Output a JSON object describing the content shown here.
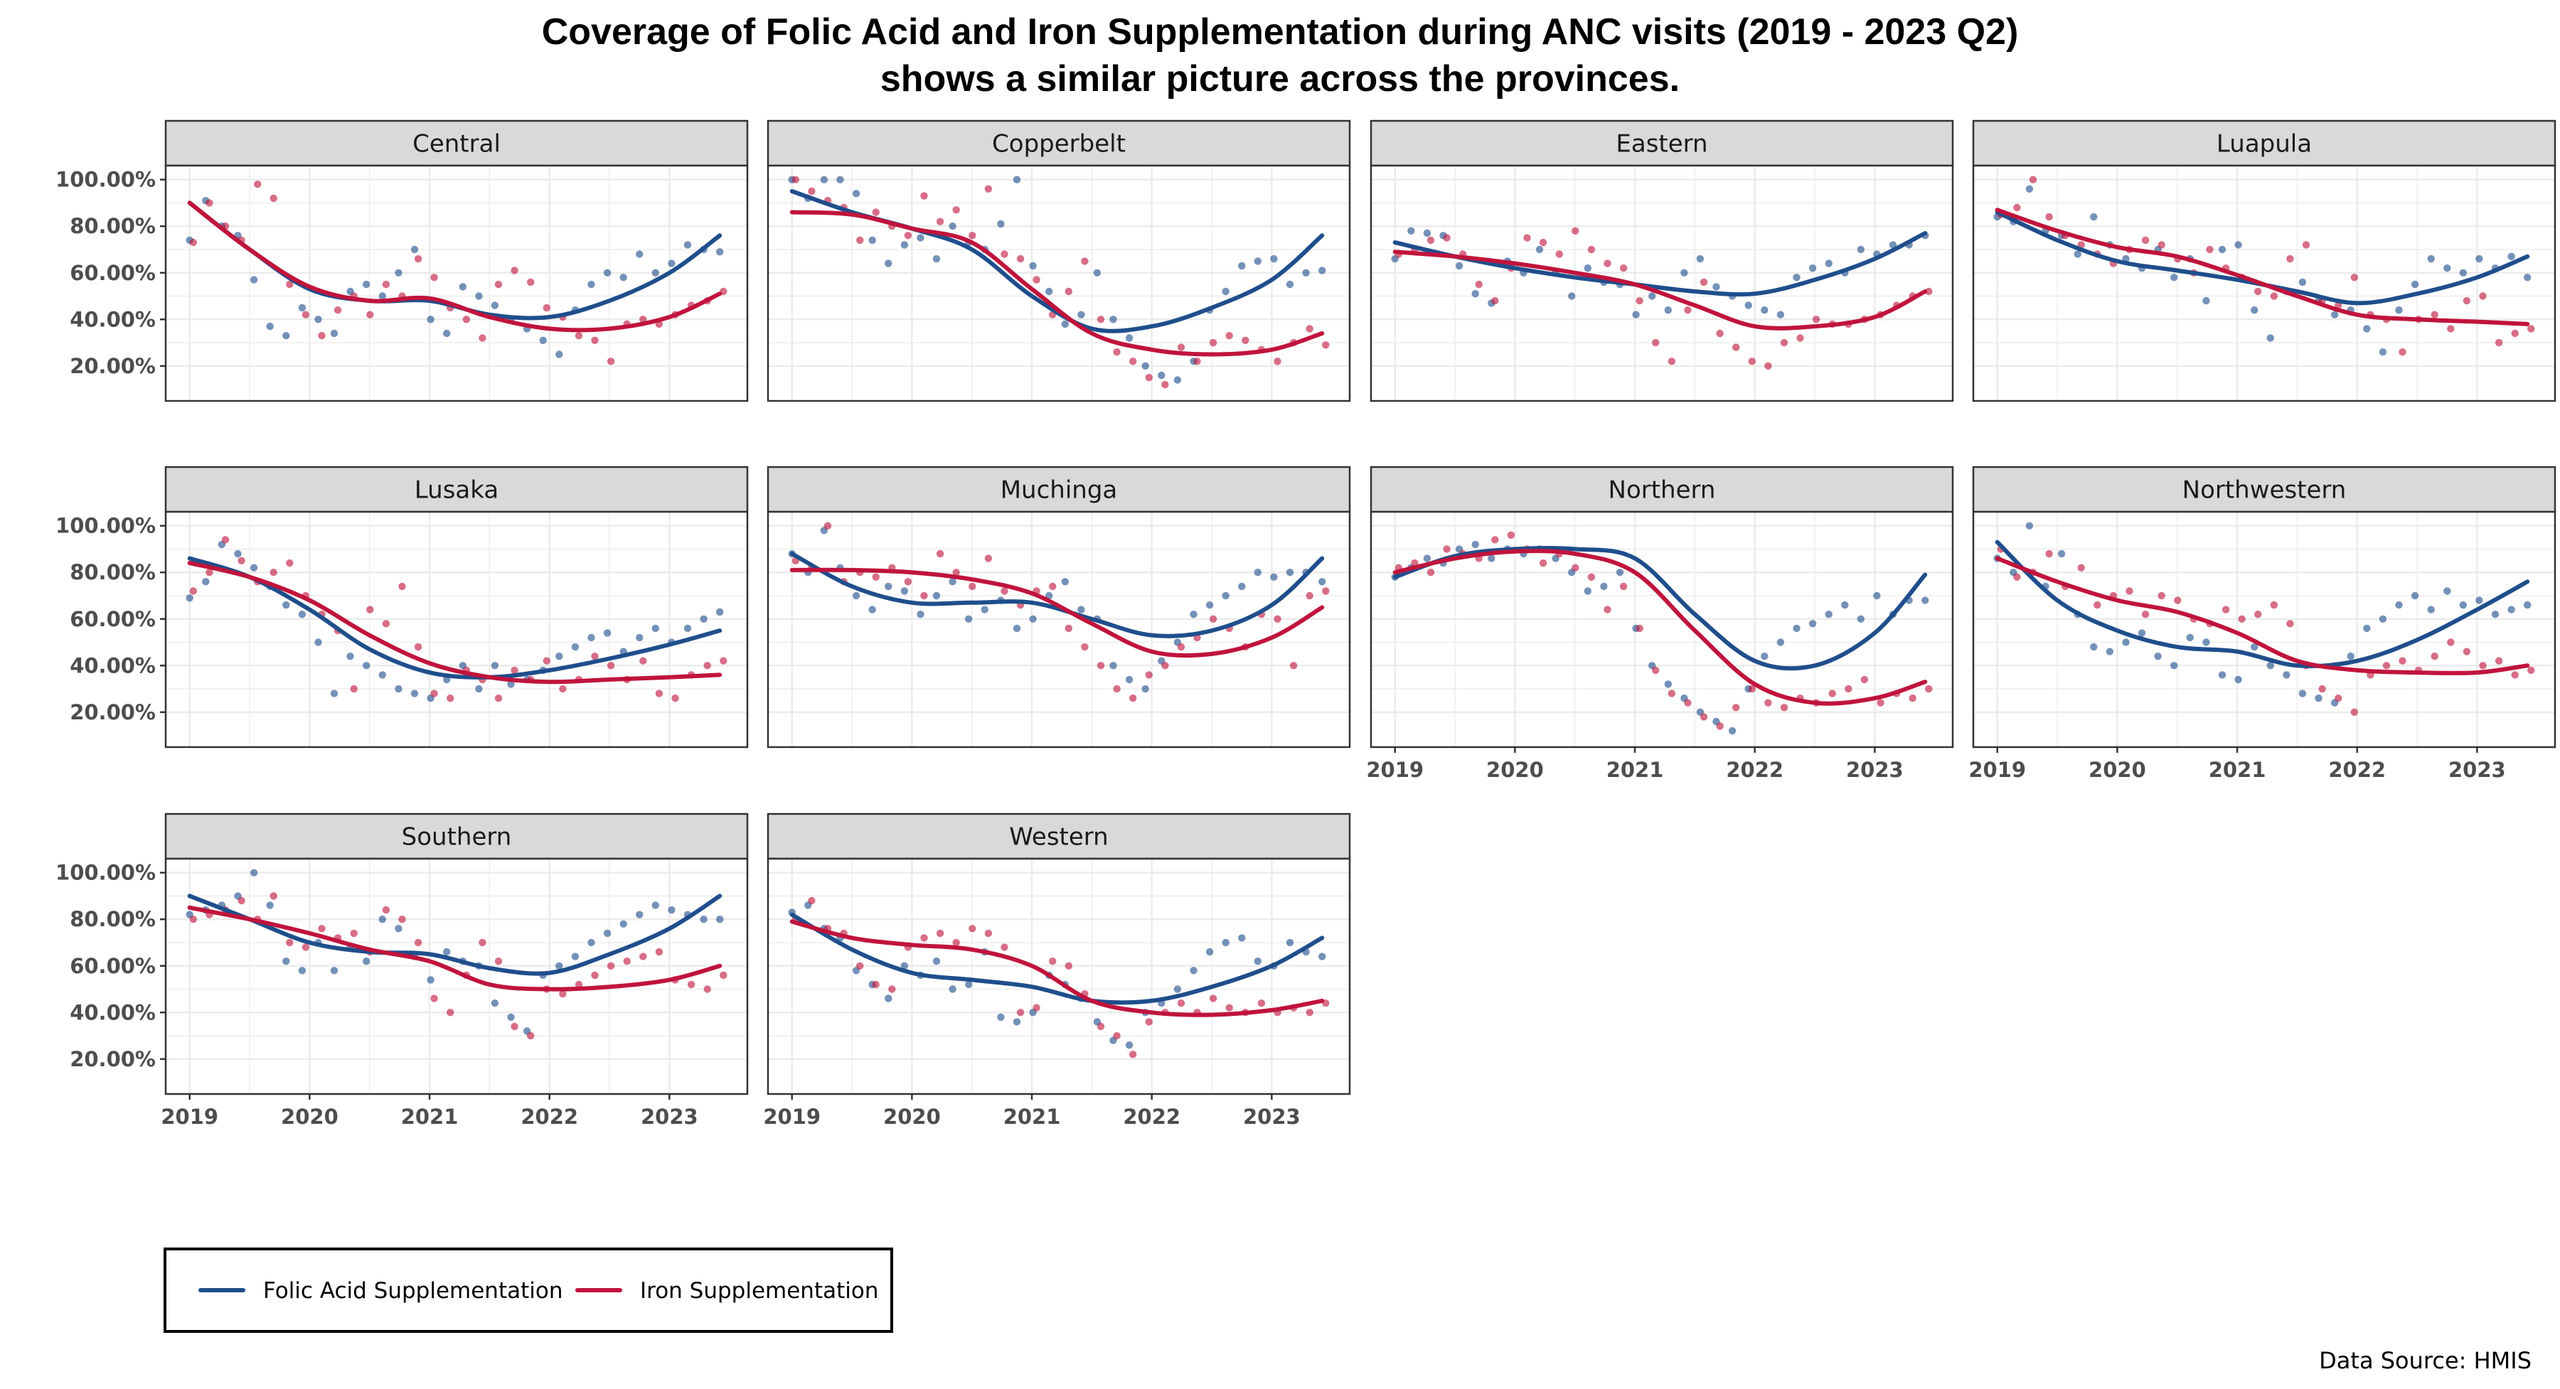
{
  "title_line1": "Coverage of Folic Acid and Iron Supplementation during ANC visits (2019 - 2023 Q2)",
  "title_line2": "shows a similar picture across the provinces.",
  "source": "Data Source: HMIS",
  "colors": {
    "folic": "#1f4e8c",
    "iron": "#c0143c",
    "strip_bg": "#d9d9d9",
    "grid": "#ebebeb",
    "panel_border": "#333333"
  },
  "chart_data": {
    "type": "scatter",
    "facet_by": "province",
    "x_unit": "year",
    "xlim": [
      2018.8,
      2023.65
    ],
    "ylim": [
      0.05,
      1.06
    ],
    "x_ticks": [
      2019,
      2020,
      2021,
      2022,
      2023
    ],
    "x_tick_labels": [
      "2019",
      "2020",
      "2021",
      "2022",
      "2023"
    ],
    "y_ticks": [
      0.2,
      0.4,
      0.6,
      0.8,
      1.0
    ],
    "y_tick_labels": [
      "20.00%",
      "40.00%",
      "60.00%",
      "80.00%",
      "100.00%"
    ],
    "grid": true,
    "layout": "4 columns x 3 rows",
    "legend": {
      "position": "bottom-left",
      "entries": [
        "Folic Acid Supplementation",
        "Iron Supplementation"
      ]
    },
    "smooth_x": [
      2019.0,
      2019.5,
      2020.0,
      2020.5,
      2021.0,
      2021.5,
      2022.0,
      2022.5,
      2023.0,
      2023.42
    ],
    "panels": [
      {
        "province": "Central",
        "folic_trend": [
          0.9,
          0.7,
          0.53,
          0.48,
          0.48,
          0.42,
          0.41,
          0.48,
          0.6,
          0.76
        ],
        "iron_trend": [
          0.9,
          0.7,
          0.54,
          0.48,
          0.49,
          0.41,
          0.36,
          0.36,
          0.41,
          0.51
        ],
        "folic_points": [
          0.74,
          0.91,
          0.8,
          0.76,
          0.57,
          0.37,
          0.33,
          0.45,
          0.4,
          0.34,
          0.52,
          0.55,
          0.5,
          0.6,
          0.7,
          0.4,
          0.34,
          0.54,
          0.5,
          0.46,
          0.4,
          0.36,
          0.31,
          0.25,
          0.44,
          0.55,
          0.6,
          0.58,
          0.68,
          0.6,
          0.64,
          0.72,
          0.7,
          0.69
        ],
        "iron_points": [
          0.73,
          0.9,
          0.8,
          0.74,
          0.98,
          0.92,
          0.55,
          0.42,
          0.33,
          0.44,
          0.5,
          0.42,
          0.55,
          0.5,
          0.66,
          0.58,
          0.45,
          0.4,
          0.32,
          0.55,
          0.61,
          0.56,
          0.45,
          0.41,
          0.33,
          0.31,
          0.22,
          0.38,
          0.4,
          0.38,
          0.42,
          0.46,
          0.48,
          0.52
        ]
      },
      {
        "province": "Copperbelt",
        "folic_trend": [
          0.95,
          0.86,
          0.79,
          0.7,
          0.5,
          0.36,
          0.37,
          0.45,
          0.57,
          0.76
        ],
        "iron_trend": [
          0.86,
          0.85,
          0.79,
          0.73,
          0.53,
          0.34,
          0.27,
          0.25,
          0.27,
          0.34
        ],
        "folic_points": [
          1.0,
          0.92,
          1.0,
          1.0,
          0.94,
          0.74,
          0.64,
          0.72,
          0.75,
          0.66,
          0.8,
          0.73,
          0.7,
          0.81,
          1.0,
          0.63,
          0.52,
          0.38,
          0.42,
          0.6,
          0.4,
          0.32,
          0.2,
          0.16,
          0.14,
          0.22,
          0.44,
          0.52,
          0.63,
          0.65,
          0.66,
          0.55,
          0.6,
          0.61
        ],
        "iron_points": [
          1.0,
          0.95,
          0.91,
          0.88,
          0.74,
          0.86,
          0.8,
          0.76,
          0.93,
          0.82,
          0.87,
          0.76,
          0.96,
          0.68,
          0.66,
          0.57,
          0.42,
          0.52,
          0.65,
          0.4,
          0.26,
          0.22,
          0.15,
          0.12,
          0.28,
          0.22,
          0.3,
          0.33,
          0.31,
          0.27,
          0.22,
          0.3,
          0.36,
          0.29
        ]
      },
      {
        "province": "Eastern",
        "folic_trend": [
          0.73,
          0.67,
          0.62,
          0.58,
          0.55,
          0.52,
          0.51,
          0.57,
          0.66,
          0.77
        ],
        "iron_trend": [
          0.69,
          0.67,
          0.64,
          0.6,
          0.55,
          0.46,
          0.37,
          0.37,
          0.41,
          0.52
        ],
        "folic_points": [
          0.66,
          0.78,
          0.77,
          0.76,
          0.63,
          0.51,
          0.47,
          0.65,
          0.6,
          0.7,
          0.6,
          0.5,
          0.62,
          0.56,
          0.55,
          0.42,
          0.5,
          0.44,
          0.6,
          0.66,
          0.54,
          0.5,
          0.46,
          0.44,
          0.42,
          0.58,
          0.62,
          0.64,
          0.6,
          0.7,
          0.68,
          0.72,
          0.72,
          0.76
        ],
        "iron_points": [
          0.68,
          0.7,
          0.74,
          0.75,
          0.68,
          0.55,
          0.48,
          0.62,
          0.75,
          0.73,
          0.68,
          0.78,
          0.7,
          0.64,
          0.62,
          0.48,
          0.3,
          0.22,
          0.44,
          0.56,
          0.34,
          0.28,
          0.22,
          0.2,
          0.3,
          0.32,
          0.4,
          0.38,
          0.38,
          0.4,
          0.42,
          0.46,
          0.5,
          0.52
        ]
      },
      {
        "province": "Luapula",
        "folic_trend": [
          0.86,
          0.74,
          0.65,
          0.61,
          0.57,
          0.52,
          0.47,
          0.51,
          0.58,
          0.67
        ],
        "iron_trend": [
          0.87,
          0.78,
          0.71,
          0.67,
          0.59,
          0.5,
          0.42,
          0.4,
          0.39,
          0.38
        ],
        "folic_points": [
          0.84,
          0.82,
          0.96,
          0.78,
          0.76,
          0.68,
          0.84,
          0.72,
          0.66,
          0.62,
          0.7,
          0.58,
          0.66,
          0.48,
          0.7,
          0.72,
          0.44,
          0.32,
          0.52,
          0.56,
          0.48,
          0.42,
          0.44,
          0.36,
          0.26,
          0.44,
          0.55,
          0.66,
          0.62,
          0.6,
          0.66,
          0.62,
          0.67,
          0.58
        ],
        "iron_points": [
          0.85,
          0.88,
          1.0,
          0.84,
          0.76,
          0.72,
          0.68,
          0.64,
          0.7,
          0.74,
          0.72,
          0.66,
          0.6,
          0.7,
          0.62,
          0.58,
          0.52,
          0.5,
          0.66,
          0.72,
          0.48,
          0.46,
          0.58,
          0.42,
          0.4,
          0.26,
          0.4,
          0.42,
          0.36,
          0.48,
          0.5,
          0.3,
          0.34,
          0.36
        ]
      },
      {
        "province": "Lusaka",
        "folic_trend": [
          0.86,
          0.78,
          0.64,
          0.47,
          0.37,
          0.35,
          0.38,
          0.43,
          0.49,
          0.55
        ],
        "iron_trend": [
          0.84,
          0.78,
          0.68,
          0.53,
          0.41,
          0.35,
          0.33,
          0.34,
          0.35,
          0.36
        ],
        "folic_points": [
          0.69,
          0.76,
          0.92,
          0.88,
          0.82,
          0.74,
          0.66,
          0.62,
          0.5,
          0.28,
          0.44,
          0.4,
          0.36,
          0.3,
          0.28,
          0.26,
          0.34,
          0.4,
          0.3,
          0.4,
          0.32,
          0.34,
          0.38,
          0.44,
          0.48,
          0.52,
          0.54,
          0.46,
          0.52,
          0.56,
          0.5,
          0.56,
          0.6,
          0.63
        ],
        "iron_points": [
          0.72,
          0.8,
          0.94,
          0.85,
          0.76,
          0.8,
          0.84,
          0.7,
          0.62,
          0.55,
          0.3,
          0.64,
          0.58,
          0.74,
          0.48,
          0.28,
          0.26,
          0.38,
          0.34,
          0.26,
          0.38,
          0.34,
          0.42,
          0.3,
          0.34,
          0.44,
          0.4,
          0.34,
          0.42,
          0.28,
          0.26,
          0.36,
          0.4,
          0.42
        ]
      },
      {
        "province": "Muchinga",
        "folic_trend": [
          0.88,
          0.74,
          0.67,
          0.67,
          0.67,
          0.6,
          0.53,
          0.55,
          0.66,
          0.86
        ],
        "iron_trend": [
          0.81,
          0.81,
          0.8,
          0.77,
          0.71,
          0.58,
          0.46,
          0.45,
          0.52,
          0.65
        ],
        "folic_points": [
          0.88,
          0.8,
          0.98,
          0.82,
          0.7,
          0.64,
          0.74,
          0.72,
          0.62,
          0.7,
          0.76,
          0.6,
          0.64,
          0.68,
          0.56,
          0.6,
          0.7,
          0.76,
          0.64,
          0.6,
          0.4,
          0.34,
          0.3,
          0.42,
          0.5,
          0.62,
          0.66,
          0.7,
          0.74,
          0.8,
          0.78,
          0.8,
          0.8,
          0.76
        ],
        "iron_points": [
          0.85,
          0.82,
          1.0,
          0.76,
          0.8,
          0.78,
          0.82,
          0.76,
          0.7,
          0.88,
          0.8,
          0.74,
          0.86,
          0.72,
          0.66,
          0.72,
          0.74,
          0.56,
          0.48,
          0.4,
          0.3,
          0.26,
          0.36,
          0.4,
          0.48,
          0.52,
          0.6,
          0.56,
          0.48,
          0.62,
          0.6,
          0.4,
          0.7,
          0.72
        ]
      },
      {
        "province": "Northern",
        "folic_trend": [
          0.78,
          0.87,
          0.9,
          0.9,
          0.86,
          0.62,
          0.42,
          0.4,
          0.54,
          0.79
        ],
        "iron_trend": [
          0.8,
          0.86,
          0.89,
          0.88,
          0.8,
          0.55,
          0.32,
          0.24,
          0.26,
          0.33
        ],
        "folic_points": [
          0.78,
          0.82,
          0.86,
          0.84,
          0.9,
          0.92,
          0.86,
          0.9,
          0.88,
          0.9,
          0.86,
          0.8,
          0.72,
          0.74,
          0.8,
          0.56,
          0.4,
          0.32,
          0.26,
          0.2,
          0.16,
          0.12,
          0.3,
          0.44,
          0.5,
          0.56,
          0.58,
          0.62,
          0.66,
          0.6,
          0.7,
          0.62,
          0.68,
          0.68
        ],
        "iron_points": [
          0.82,
          0.84,
          0.8,
          0.9,
          0.88,
          0.86,
          0.94,
          0.96,
          0.9,
          0.84,
          0.88,
          0.82,
          0.78,
          0.64,
          0.74,
          0.56,
          0.38,
          0.28,
          0.24,
          0.18,
          0.14,
          0.22,
          0.3,
          0.24,
          0.22,
          0.26,
          0.24,
          0.28,
          0.3,
          0.34,
          0.24,
          0.28,
          0.26,
          0.3
        ]
      },
      {
        "province": "Northwestern",
        "folic_trend": [
          0.93,
          0.68,
          0.55,
          0.48,
          0.46,
          0.4,
          0.42,
          0.51,
          0.64,
          0.76
        ],
        "iron_trend": [
          0.86,
          0.76,
          0.68,
          0.63,
          0.54,
          0.42,
          0.38,
          0.37,
          0.37,
          0.4
        ],
        "folic_points": [
          0.86,
          0.8,
          1.0,
          0.74,
          0.88,
          0.62,
          0.48,
          0.46,
          0.5,
          0.54,
          0.44,
          0.4,
          0.52,
          0.5,
          0.36,
          0.34,
          0.48,
          0.4,
          0.36,
          0.28,
          0.26,
          0.24,
          0.44,
          0.56,
          0.6,
          0.66,
          0.7,
          0.64,
          0.72,
          0.66,
          0.68,
          0.62,
          0.64,
          0.66
        ],
        "iron_points": [
          0.9,
          0.78,
          0.8,
          0.88,
          0.74,
          0.82,
          0.66,
          0.7,
          0.72,
          0.62,
          0.7,
          0.68,
          0.6,
          0.58,
          0.64,
          0.6,
          0.62,
          0.66,
          0.58,
          0.4,
          0.3,
          0.26,
          0.2,
          0.36,
          0.4,
          0.42,
          0.38,
          0.44,
          0.5,
          0.46,
          0.4,
          0.42,
          0.36,
          0.38
        ]
      },
      {
        "province": "Southern",
        "folic_trend": [
          0.9,
          0.8,
          0.7,
          0.66,
          0.65,
          0.59,
          0.57,
          0.65,
          0.76,
          0.9
        ],
        "iron_trend": [
          0.85,
          0.8,
          0.74,
          0.67,
          0.62,
          0.52,
          0.5,
          0.51,
          0.54,
          0.6
        ],
        "folic_points": [
          0.82,
          0.84,
          0.86,
          0.9,
          1.0,
          0.86,
          0.62,
          0.58,
          0.7,
          0.58,
          0.68,
          0.62,
          0.8,
          0.76,
          0.64,
          0.54,
          0.66,
          0.62,
          0.6,
          0.44,
          0.38,
          0.32,
          0.56,
          0.6,
          0.64,
          0.7,
          0.74,
          0.78,
          0.82,
          0.86,
          0.84,
          0.82,
          0.8,
          0.8
        ],
        "iron_points": [
          0.8,
          0.82,
          0.84,
          0.88,
          0.8,
          0.9,
          0.7,
          0.68,
          0.76,
          0.72,
          0.74,
          0.66,
          0.84,
          0.8,
          0.7,
          0.46,
          0.4,
          0.56,
          0.7,
          0.62,
          0.34,
          0.3,
          0.5,
          0.48,
          0.52,
          0.56,
          0.6,
          0.62,
          0.64,
          0.66,
          0.54,
          0.52,
          0.5,
          0.56
        ]
      },
      {
        "province": "Western",
        "folic_trend": [
          0.82,
          0.67,
          0.57,
          0.54,
          0.51,
          0.45,
          0.45,
          0.51,
          0.6,
          0.72
        ],
        "iron_trend": [
          0.79,
          0.72,
          0.69,
          0.67,
          0.6,
          0.45,
          0.4,
          0.39,
          0.41,
          0.45
        ],
        "folic_points": [
          0.83,
          0.86,
          0.76,
          0.72,
          0.58,
          0.52,
          0.46,
          0.6,
          0.56,
          0.62,
          0.5,
          0.52,
          0.66,
          0.38,
          0.36,
          0.4,
          0.56,
          0.52,
          0.46,
          0.36,
          0.28,
          0.26,
          0.4,
          0.44,
          0.5,
          0.58,
          0.66,
          0.7,
          0.72,
          0.62,
          0.6,
          0.7,
          0.66,
          0.64
        ],
        "iron_points": [
          0.8,
          0.88,
          0.76,
          0.74,
          0.6,
          0.52,
          0.5,
          0.68,
          0.72,
          0.74,
          0.7,
          0.76,
          0.74,
          0.68,
          0.4,
          0.42,
          0.62,
          0.6,
          0.48,
          0.34,
          0.3,
          0.22,
          0.36,
          0.4,
          0.44,
          0.4,
          0.46,
          0.42,
          0.4,
          0.44,
          0.4,
          0.42,
          0.4,
          0.44
        ]
      }
    ]
  }
}
